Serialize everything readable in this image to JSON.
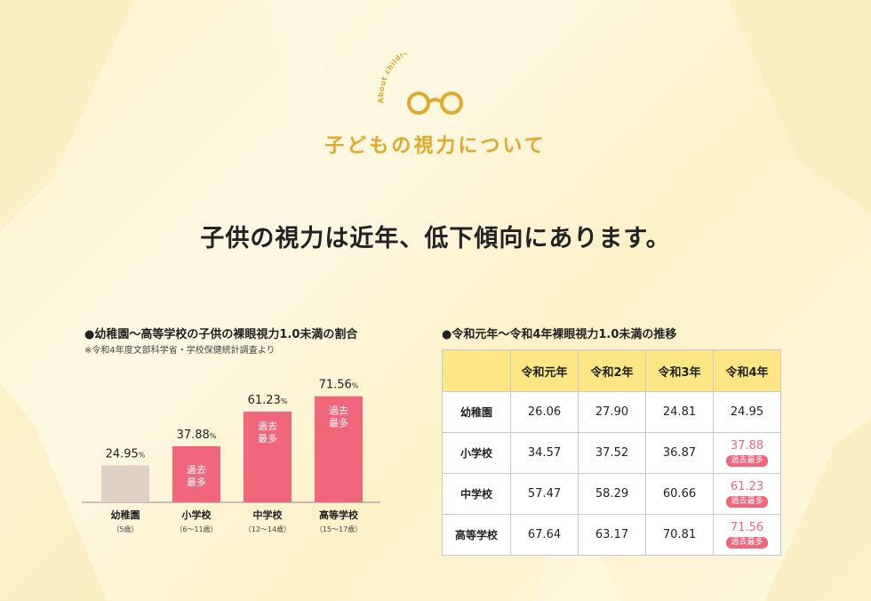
{
  "header": {
    "arc_text": "About children's eyesight",
    "title": "子どもの視力について",
    "headline": "子供の視力は近年、低下傾向にあります。"
  },
  "colors": {
    "accent": "#e0a92a",
    "bar_normal": "#dfd2c4",
    "bar_highlight": "#f0667a",
    "table_header": "#fce784"
  },
  "chart_data": {
    "type": "bar",
    "title": "●幼稚園〜高等学校の子供の裸眼視力1.0未満の割合",
    "source": "※令和4年度文部科学省・学校保健統計調査より",
    "categories": [
      "幼稚園",
      "小学校",
      "中学校",
      "高等学校"
    ],
    "category_sub": [
      "（5歳）",
      "（6〜11歳）",
      "（12〜14歳）",
      "（15〜17歳）"
    ],
    "values": [
      24.95,
      37.88,
      61.23,
      71.56
    ],
    "value_labels": [
      "24.95",
      "37.88",
      "61.23",
      "71.56"
    ],
    "unit": "%",
    "highlight": [
      false,
      true,
      true,
      true
    ],
    "highlight_label": [
      "過去",
      "最多"
    ]
  },
  "table": {
    "title": "●令和元年〜令和4年裸眼視力1.0未満の推移",
    "columns": [
      "",
      "令和元年",
      "令和2年",
      "令和3年",
      "令和4年"
    ],
    "rows": [
      {
        "label": "幼稚園",
        "values": [
          "26.06",
          "27.90",
          "24.81",
          "24.95"
        ],
        "highlight_last": false
      },
      {
        "label": "小学校",
        "values": [
          "34.57",
          "37.52",
          "36.87",
          "37.88"
        ],
        "highlight_last": true
      },
      {
        "label": "中学校",
        "values": [
          "57.47",
          "58.29",
          "60.66",
          "61.23"
        ],
        "highlight_last": true
      },
      {
        "label": "高等学校",
        "values": [
          "67.64",
          "63.17",
          "70.81",
          "71.56"
        ],
        "highlight_last": true
      }
    ],
    "highlight_tag": "過去最多"
  }
}
